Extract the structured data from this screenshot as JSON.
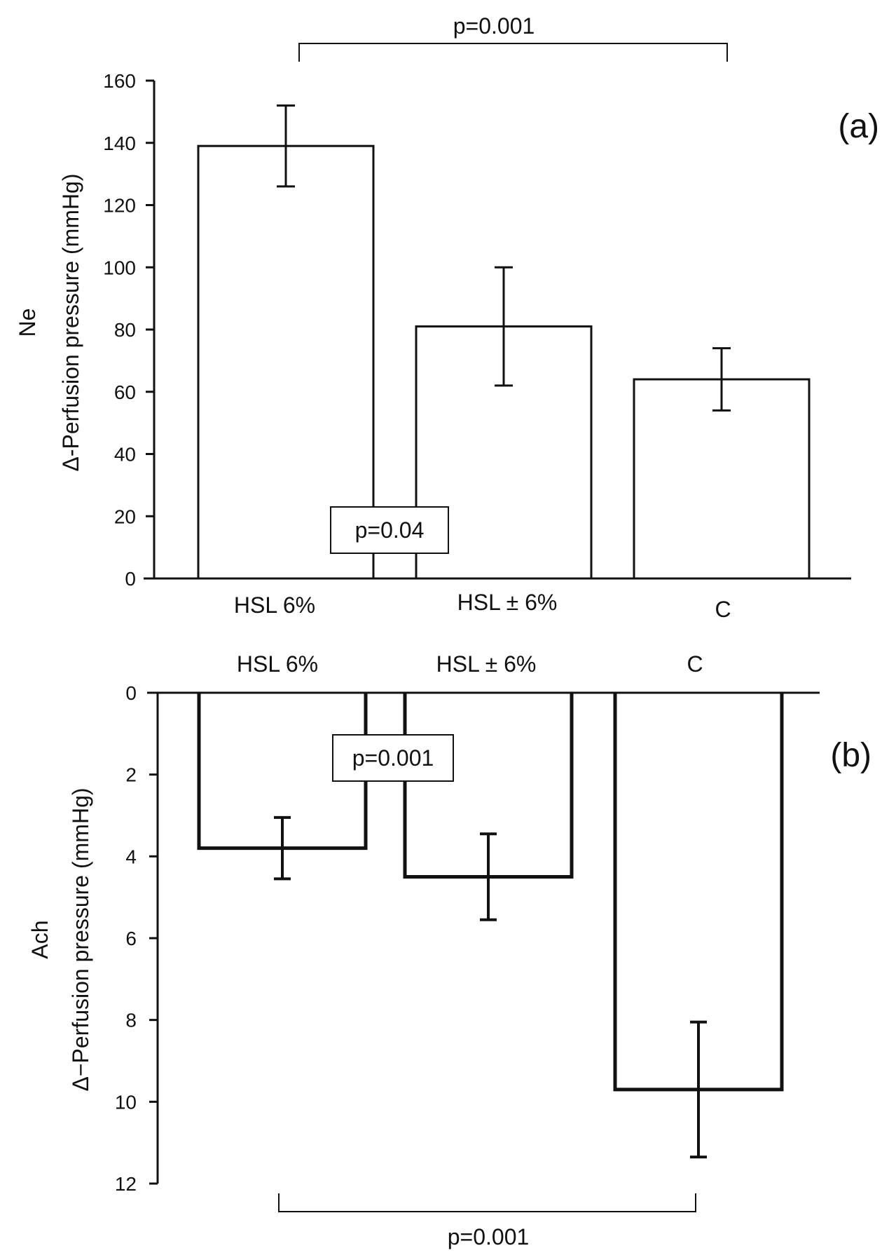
{
  "chart_data": [
    {
      "type": "bar",
      "panel_label": "(a)",
      "ylabel_top": "Ne",
      "ylabel": "Δ-Perfusion pressure (mmHg)",
      "categories": [
        "HSL 6%",
        "HSL ± 6%",
        "C"
      ],
      "values": [
        139,
        81,
        64
      ],
      "errors": [
        13,
        19,
        10
      ],
      "ylim": [
        0,
        160
      ],
      "yticks": [
        "0",
        "20",
        "40",
        "60",
        "80",
        "100",
        "120",
        "140",
        "160"
      ],
      "annotations": [
        {
          "text": "p=0.001",
          "type": "bracket",
          "from": 0,
          "to": 2
        },
        {
          "text": "p=0.04",
          "type": "box",
          "between": [
            0,
            1
          ]
        }
      ],
      "grid": false
    },
    {
      "type": "bar",
      "panel_label": "(b)",
      "ylabel_top": "Ach",
      "ylabel": "Δ−Perfusion pressure (mmHg)",
      "categories": [
        "HSL 6%",
        "HSL ± 6%",
        "C"
      ],
      "values": [
        3.8,
        4.5,
        9.7
      ],
      "errors": [
        0.75,
        1.05,
        1.65
      ],
      "ylim": [
        0,
        12
      ],
      "y_inverted": true,
      "yticks": [
        "0",
        "2",
        "4",
        "6",
        "8",
        "10",
        "12"
      ],
      "annotations": [
        {
          "text": "p=0.001",
          "type": "box",
          "between": [
            0,
            1
          ]
        },
        {
          "text": "p=0.001",
          "type": "bracket",
          "from": 0,
          "to": 2
        }
      ],
      "grid": false
    }
  ]
}
